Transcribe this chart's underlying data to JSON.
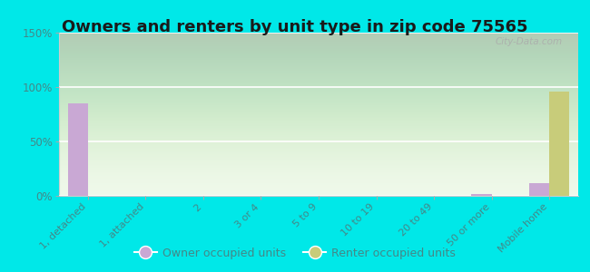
{
  "title": "Owners and renters by unit type in zip code 75565",
  "categories": [
    "1, detached",
    "1, attached",
    "2",
    "3 or 4",
    "5 to 9",
    "10 to 19",
    "20 to 49",
    "50 or more",
    "Mobile home"
  ],
  "owner_values": [
    85,
    0,
    0,
    0,
    0,
    0,
    0,
    2,
    12
  ],
  "renter_values": [
    0,
    0,
    0,
    0,
    0,
    0,
    0,
    0,
    96
  ],
  "owner_color": "#c9a8d4",
  "renter_color": "#c8cc7a",
  "outer_bg": "#00e8e8",
  "plot_bg_top": "#d8eecc",
  "plot_bg_bottom": "#eef8e8",
  "ylim": [
    0,
    150
  ],
  "yticks": [
    0,
    50,
    100,
    150
  ],
  "ytick_labels": [
    "0%",
    "50%",
    "100%",
    "150%"
  ],
  "bar_width": 0.35,
  "title_fontsize": 13,
  "tick_label_color": "#448888",
  "watermark": "City-Data.com"
}
